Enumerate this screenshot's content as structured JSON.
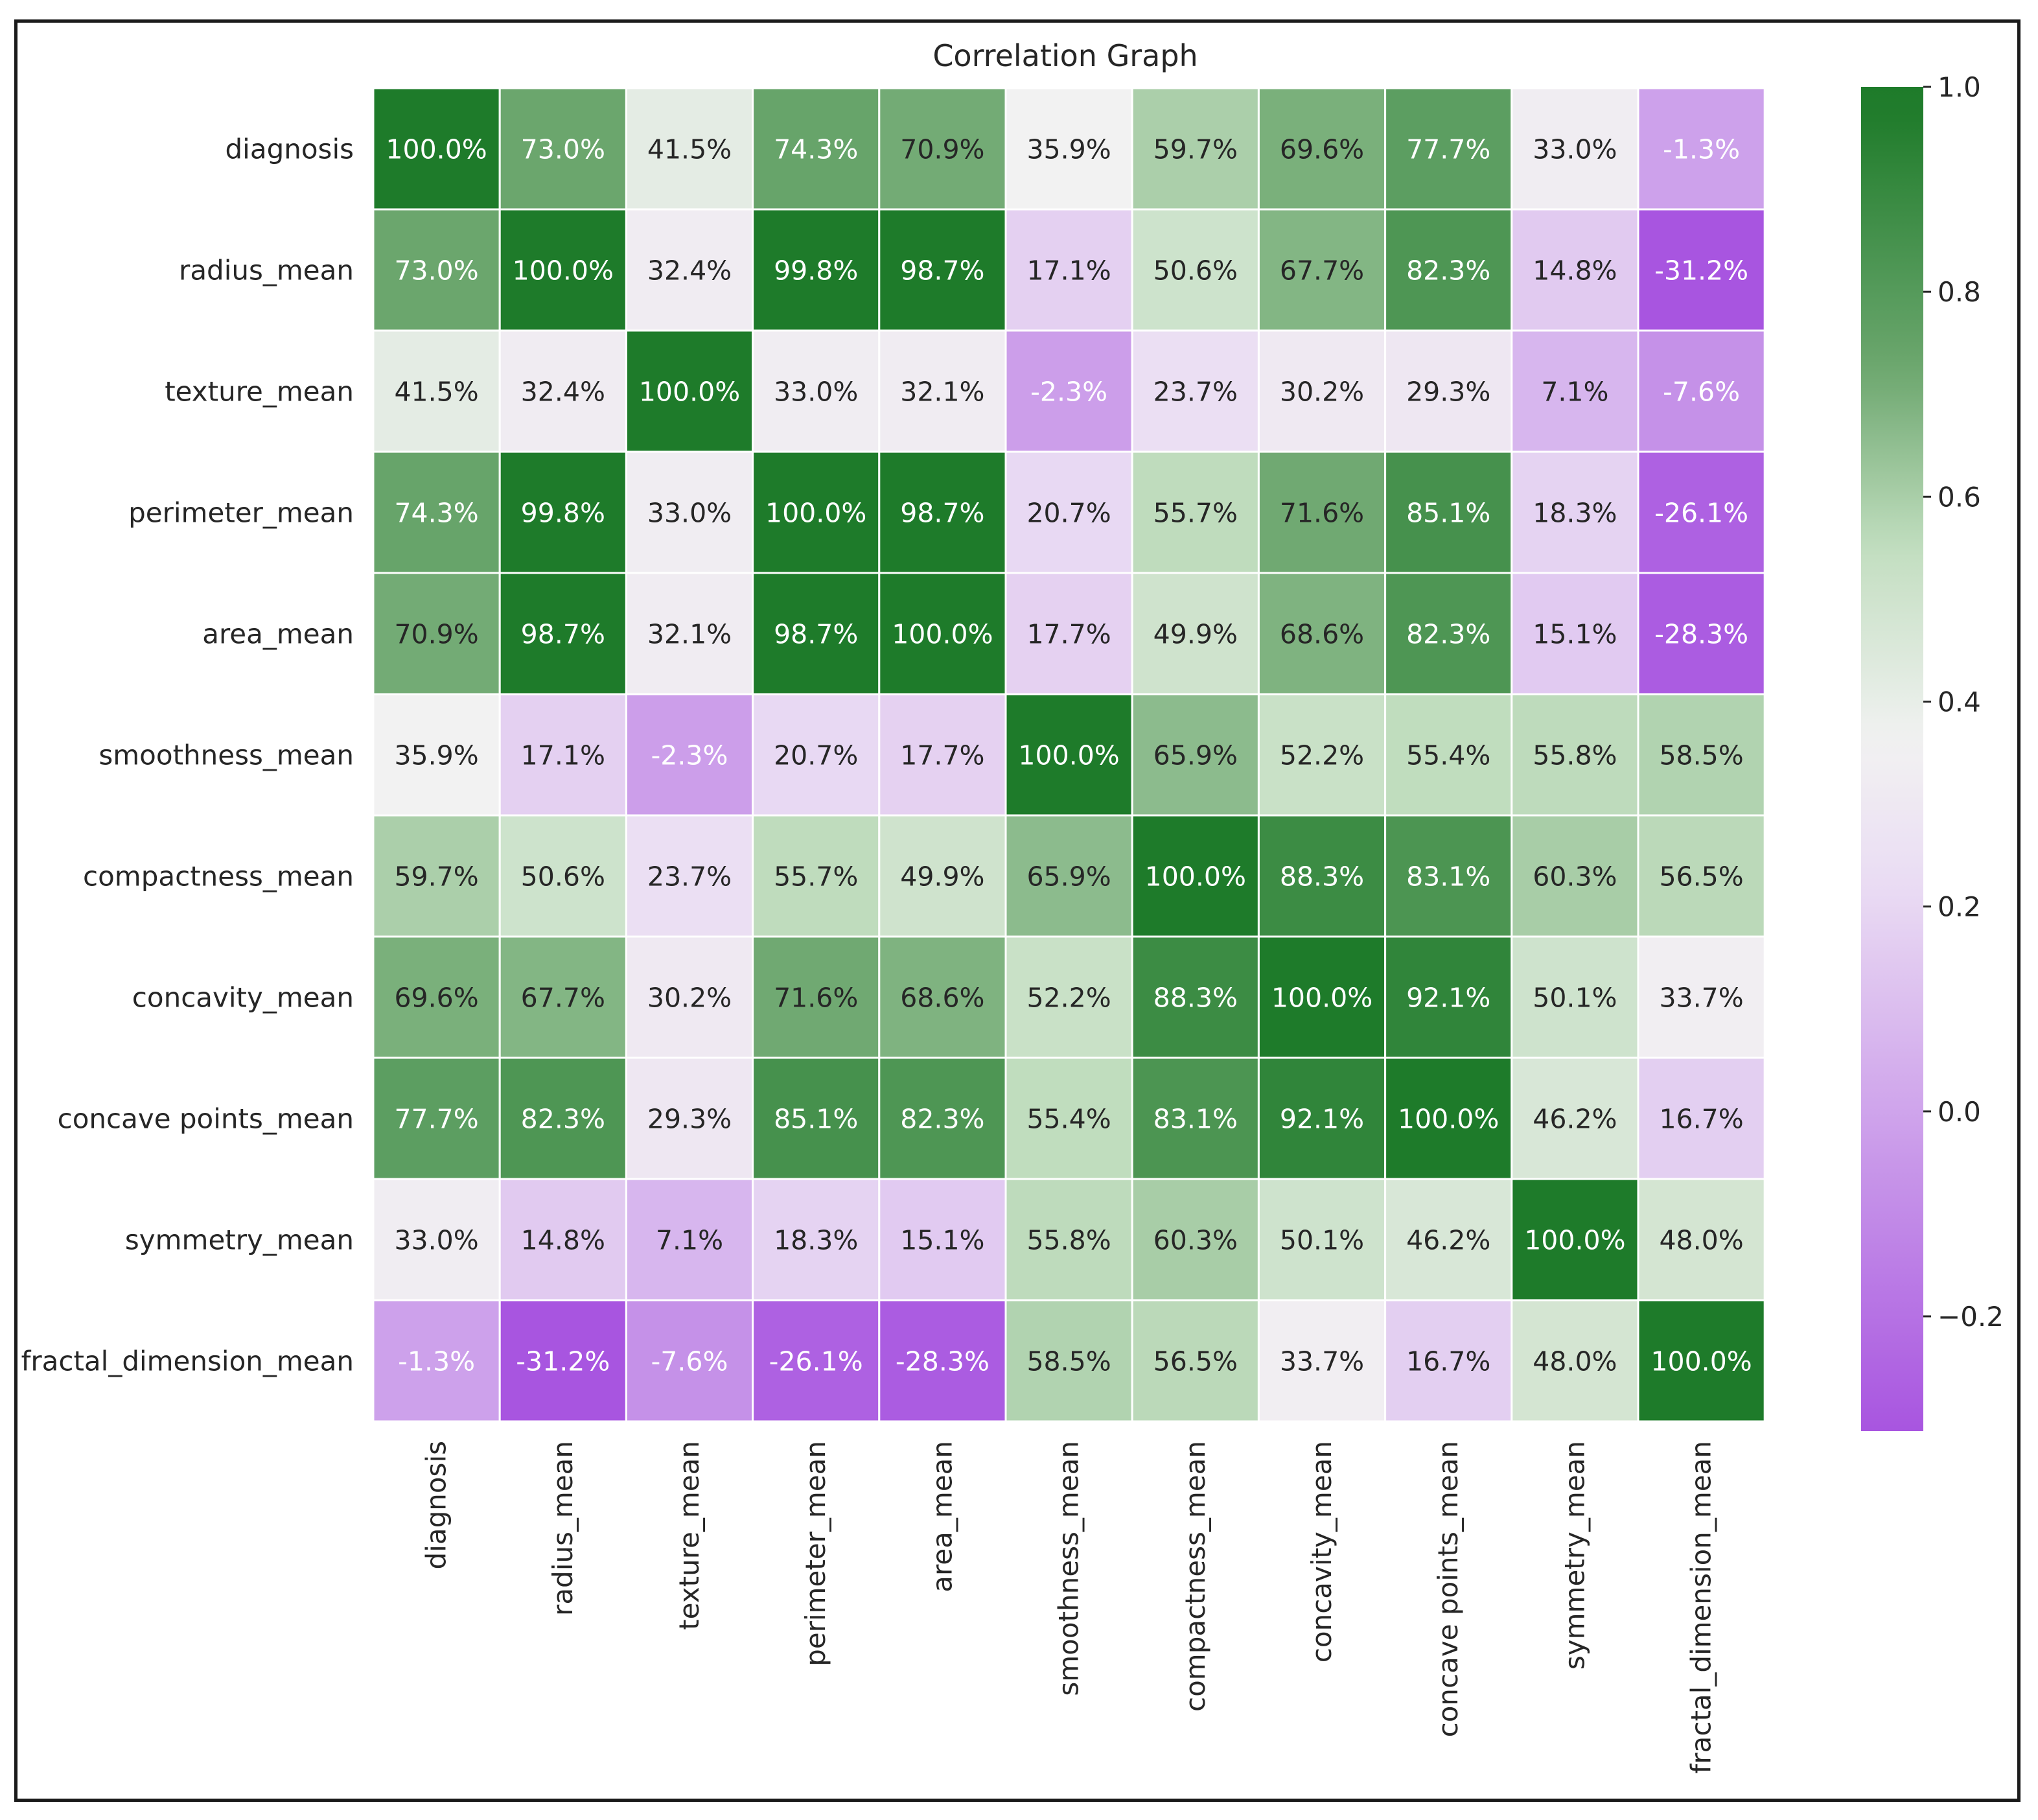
{
  "chart_data": {
    "type": "heatmap",
    "title": "Correlation Graph",
    "variables": [
      "diagnosis",
      "radius_mean",
      "texture_mean",
      "perimeter_mean",
      "area_mean",
      "smoothness_mean",
      "compactness_mean",
      "concavity_mean",
      "concave points_mean",
      "symmetry_mean",
      "fractal_dimension_mean"
    ],
    "values": [
      [
        100.0,
        73.0,
        41.5,
        74.3,
        70.9,
        35.9,
        59.7,
        69.6,
        77.7,
        33.0,
        -1.3
      ],
      [
        73.0,
        100.0,
        32.4,
        99.8,
        98.7,
        17.1,
        50.6,
        67.7,
        82.3,
        14.8,
        -31.2
      ],
      [
        41.5,
        32.4,
        100.0,
        33.0,
        32.1,
        -2.3,
        23.7,
        30.2,
        29.3,
        7.1,
        -7.6
      ],
      [
        74.3,
        99.8,
        33.0,
        100.0,
        98.7,
        20.7,
        55.7,
        71.6,
        85.1,
        18.3,
        -26.1
      ],
      [
        70.9,
        98.7,
        32.1,
        98.7,
        100.0,
        17.7,
        49.9,
        68.6,
        82.3,
        15.1,
        -28.3
      ],
      [
        35.9,
        17.1,
        -2.3,
        20.7,
        17.7,
        100.0,
        65.9,
        52.2,
        55.4,
        55.8,
        58.5
      ],
      [
        59.7,
        50.6,
        23.7,
        55.7,
        49.9,
        65.9,
        100.0,
        88.3,
        83.1,
        60.3,
        56.5
      ],
      [
        69.6,
        67.7,
        30.2,
        71.6,
        68.6,
        52.2,
        88.3,
        100.0,
        92.1,
        50.1,
        33.7
      ],
      [
        77.7,
        82.3,
        29.3,
        85.1,
        82.3,
        55.4,
        83.1,
        92.1,
        100.0,
        46.2,
        16.7
      ],
      [
        33.0,
        14.8,
        7.1,
        18.3,
        15.1,
        55.8,
        60.3,
        50.1,
        46.2,
        100.0,
        48.0
      ],
      [
        -1.3,
        -31.2,
        -7.6,
        -26.1,
        -28.3,
        58.5,
        56.5,
        33.7,
        16.7,
        48.0,
        100.0
      ]
    ],
    "value_format": "percent_1dp",
    "colorbar": {
      "range": [
        -0.312,
        1.0
      ],
      "ticks": [
        1.0,
        0.8,
        0.6,
        0.4,
        0.2,
        0.0,
        -0.2
      ],
      "tick_labels": [
        "1.0",
        "0.8",
        "0.6",
        "0.4",
        "0.2",
        "0.0",
        "−0.2"
      ]
    },
    "colors": {
      "low": "#a855e0",
      "mid_low": "#eadcf3",
      "center": "#f2f2f2",
      "mid_high": "#c2dec0",
      "high": "#1e7b2a",
      "text_dark": "#262626",
      "text_light": "#ffffff"
    }
  }
}
